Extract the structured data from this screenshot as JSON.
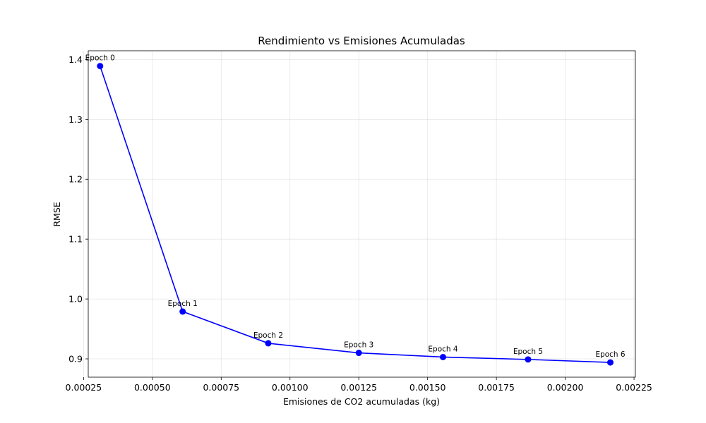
{
  "chart_data": {
    "type": "line",
    "title": "Rendimiento vs Emisiones Acumuladas",
    "xlabel": "Emisiones de CO2 acumuladas (kg)",
    "ylabel": "RMSE",
    "xlim": [
      0.000267,
      0.002255
    ],
    "ylim": [
      0.8694,
      1.4146
    ],
    "grid": true,
    "line_color": "#0000ff",
    "x_ticks": [
      0.00025,
      0.0005,
      0.00075,
      0.001,
      0.00125,
      0.0015,
      0.00175,
      0.002,
      0.00225
    ],
    "x_tick_labels": [
      "0.00025",
      "0.00050",
      "0.00075",
      "0.00100",
      "0.00125",
      "0.00150",
      "0.00175",
      "0.00200",
      "0.00225"
    ],
    "y_ticks": [
      0.9,
      1.0,
      1.1,
      1.2,
      1.3,
      1.4
    ],
    "y_tick_labels": [
      "0.9",
      "1.0",
      "1.1",
      "1.2",
      "1.3",
      "1.4"
    ],
    "series": [
      {
        "x": [
          0.00031,
          0.00061,
          0.000921,
          0.00125,
          0.001556,
          0.001865,
          0.002164
        ],
        "y": [
          1.389,
          0.979,
          0.926,
          0.91,
          0.903,
          0.899,
          0.894
        ],
        "labels": [
          "Epoch 0",
          "Epoch 1",
          "Epoch 2",
          "Epoch 3",
          "Epoch 4",
          "Epoch 5",
          "Epoch 6"
        ]
      }
    ]
  }
}
